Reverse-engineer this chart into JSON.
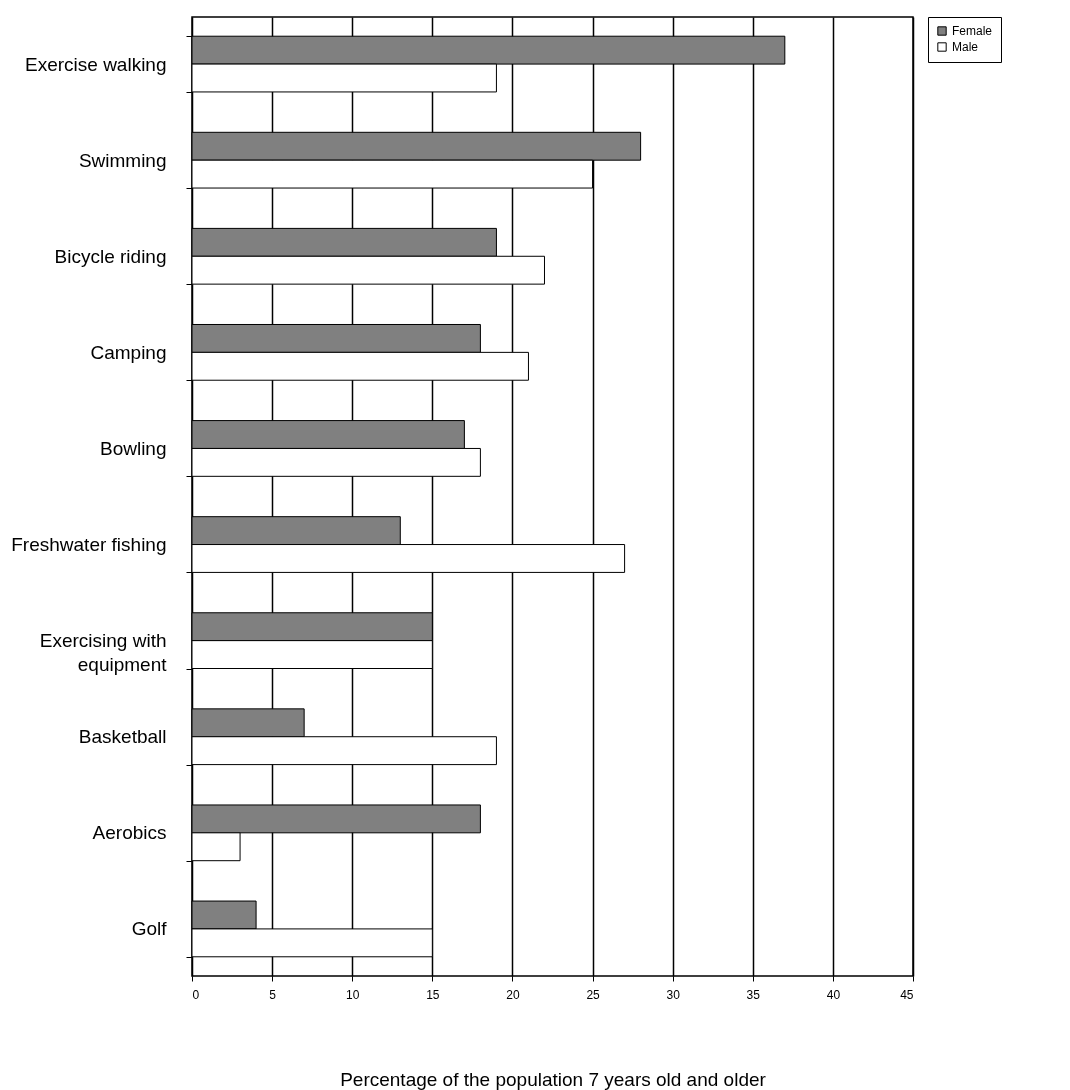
{
  "chart_data": {
    "type": "bar",
    "orientation": "horizontal",
    "xlabel": "Percentage of the population 7 years old and older",
    "categories": [
      "Exercise walking",
      "Swimming",
      "Bicycle riding",
      "Camping",
      "Bowling",
      "Freshwater fishing",
      "Exercising with equipment",
      "Basketball",
      "Aerobics",
      "Golf"
    ],
    "series": [
      {
        "name": "Female",
        "color": "#808080",
        "values": [
          37,
          28,
          19,
          18,
          17,
          13,
          15,
          7,
          18,
          4
        ]
      },
      {
        "name": "Male",
        "color": "#ffffff",
        "values": [
          19,
          25,
          22,
          21,
          18,
          27,
          15,
          19,
          3,
          15
        ]
      }
    ],
    "xlim": [
      0,
      45
    ],
    "xticks": [
      0,
      5,
      10,
      15,
      20,
      25,
      30,
      35,
      40,
      45
    ],
    "grid": "x",
    "legend": "right"
  }
}
